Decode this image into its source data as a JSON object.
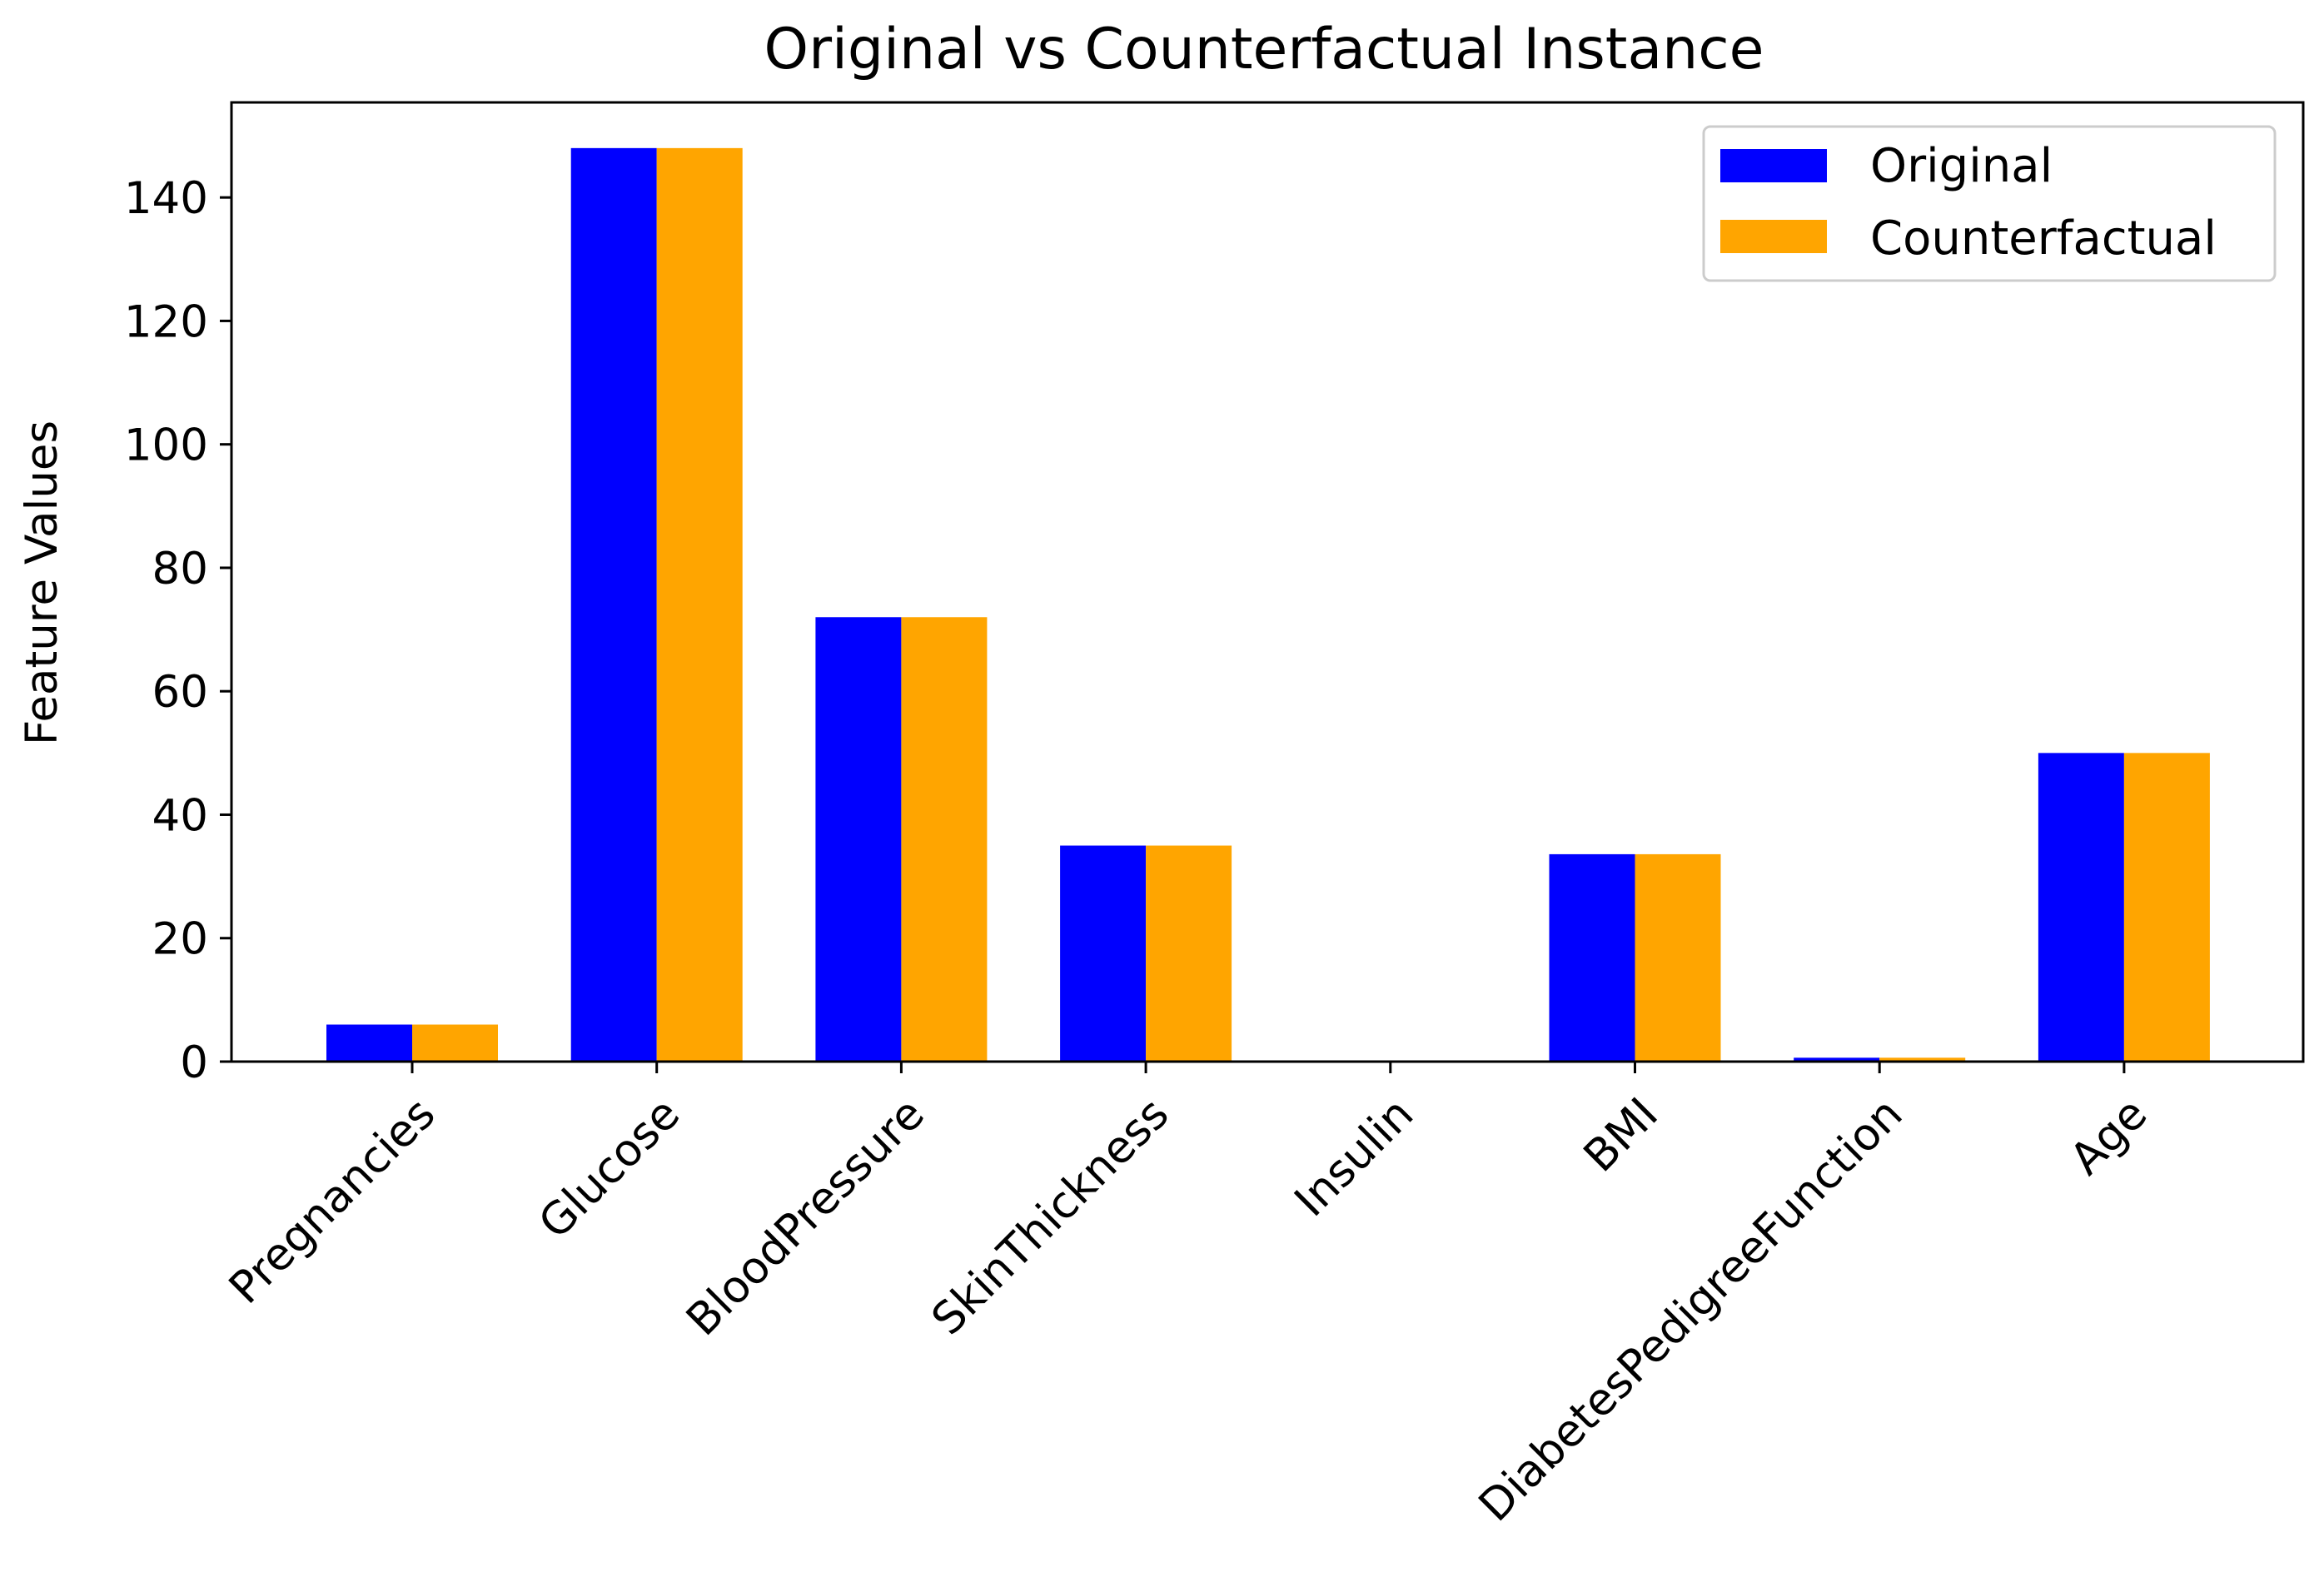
{
  "chart_data": {
    "type": "bar",
    "title": "Original vs Counterfactual Instance",
    "xlabel": "",
    "ylabel": "Feature Values",
    "categories": [
      "Pregnancies",
      "Glucose",
      "BloodPressure",
      "SkinThickness",
      "Insulin",
      "BMI",
      "DiabetesPedigreeFunction",
      "Age"
    ],
    "series": [
      {
        "name": "Original",
        "color": "#0000ff",
        "values": [
          6,
          148,
          72,
          35,
          0,
          33.6,
          0.627,
          50
        ]
      },
      {
        "name": "Counterfactual",
        "color": "#ffa500",
        "values": [
          6,
          148,
          72,
          35,
          0,
          33.6,
          0.627,
          50
        ]
      }
    ],
    "ylim": [
      0,
      155.4
    ],
    "yticks": [
      0,
      20,
      40,
      60,
      80,
      100,
      120,
      140
    ],
    "grid": false,
    "legend_position": "top-right"
  }
}
